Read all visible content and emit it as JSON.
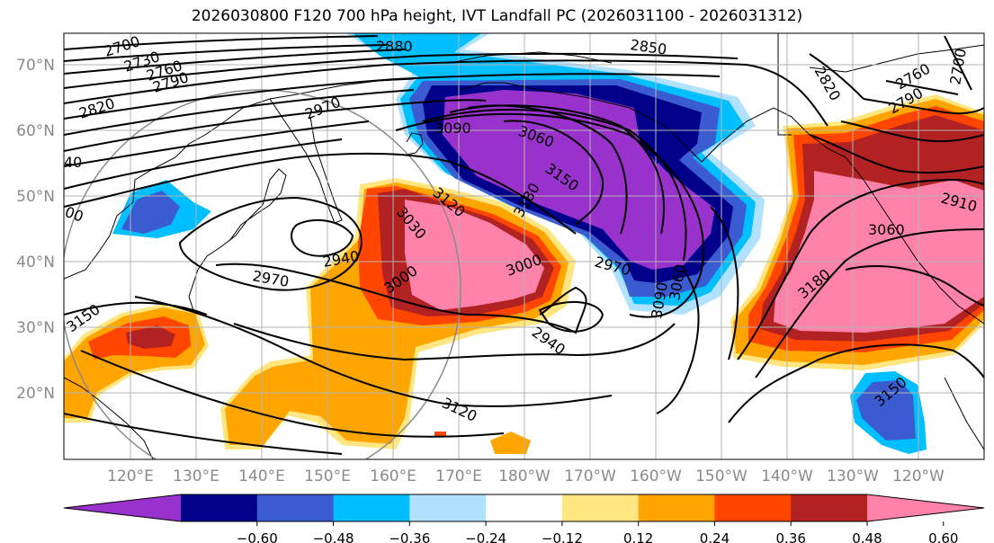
{
  "title": "2026030800 F120 700 hPa height, IVT Landfall PC (2026031100 - 2026031312)",
  "map": {
    "lat_labels": [
      "70°N",
      "60°N",
      "50°N",
      "40°N",
      "30°N",
      "20°N"
    ],
    "lon_labels": [
      "120°E",
      "130°E",
      "140°E",
      "150°E",
      "160°E",
      "170°E",
      "180°W",
      "170°W",
      "160°W",
      "150°W",
      "140°W",
      "130°W",
      "120°W"
    ],
    "contour_labels": [
      "2700",
      "2730",
      "2760",
      "2790",
      "2820",
      "2880",
      "2850",
      "2970",
      "2820",
      "2760",
      "2790",
      "2700",
      "40",
      "00",
      "3090",
      "3060",
      "3150",
      "3120",
      "3180",
      "3030",
      "2940",
      "2970",
      "3000",
      "3000",
      "2970",
      "3090",
      "3060",
      "2940",
      "3150",
      "3120",
      "3180",
      "3060",
      "2910",
      "3150"
    ]
  },
  "colorbar": {
    "colors": [
      "#9932cc",
      "#00008b",
      "#3b5bd1",
      "#00bfff",
      "#b0e2ff",
      "#ffffff",
      "#ffe680",
      "#ffa500",
      "#ff4500",
      "#b22222",
      "#ff82ab"
    ],
    "tick_labels": [
      "−0.60",
      "−0.48",
      "−0.36",
      "−0.24",
      "−0.12",
      "0.12",
      "0.24",
      "0.36",
      "0.48",
      "0.60"
    ]
  }
}
